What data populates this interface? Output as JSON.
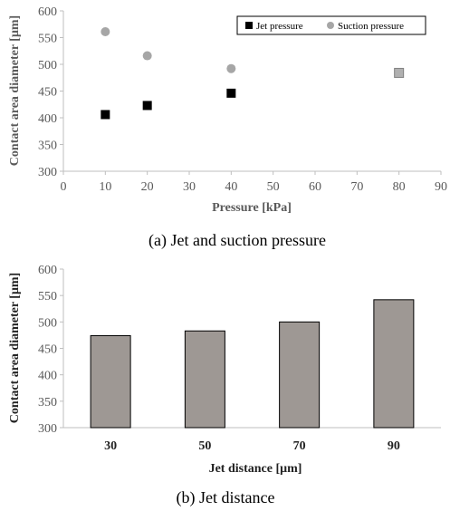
{
  "chart_data": [
    {
      "type": "scatter",
      "caption": "(a) Jet and suction pressure",
      "xlabel": "Pressure [kPa]",
      "ylabel": "Contact area diameter [μm]",
      "xlim": [
        0,
        90
      ],
      "ylim": [
        300,
        600
      ],
      "xticks": [
        "0",
        "10",
        "20",
        "30",
        "40",
        "50",
        "60",
        "70",
        "80",
        "90"
      ],
      "yticks": [
        "300",
        "350",
        "400",
        "450",
        "500",
        "550",
        "600"
      ],
      "legend_position": "top-right",
      "series": [
        {
          "name": "Jet pressure",
          "marker": "square",
          "color": "#000000",
          "x": [
            10,
            20,
            40,
            80
          ],
          "y": [
            406,
            423,
            446,
            484
          ]
        },
        {
          "name": "Suction pressure",
          "marker": "circle",
          "color": "#a6a6a6",
          "x": [
            10,
            20,
            40,
            80
          ],
          "y": [
            561,
            516,
            492,
            484
          ]
        }
      ]
    },
    {
      "type": "bar",
      "caption": "(b) Jet distance",
      "xlabel": "Jet distance [μm]",
      "ylabel": "Contact area diameter [μm]",
      "ylim": [
        300,
        600
      ],
      "yticks": [
        "300",
        "350",
        "400",
        "450",
        "500",
        "550",
        "600"
      ],
      "categories": [
        "30",
        "50",
        "70",
        "90"
      ],
      "values": [
        474,
        483,
        500,
        542
      ],
      "bar_color": "#9e9894"
    }
  ]
}
